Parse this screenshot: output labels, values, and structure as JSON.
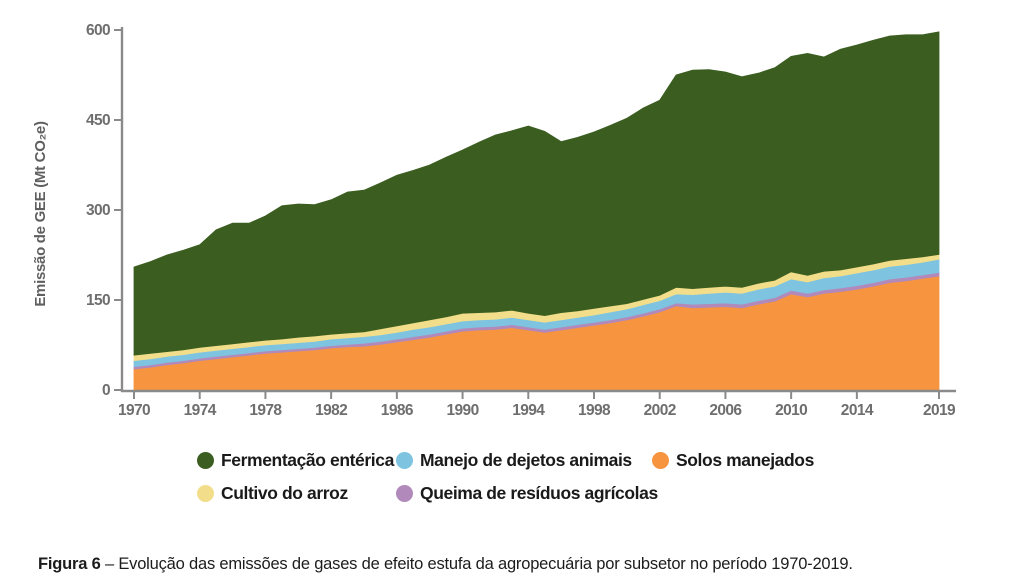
{
  "chart_data": {
    "type": "area",
    "stacked": true,
    "ylabel": "Emissão de GEE (Mt CO₂e)",
    "ylim": [
      0,
      600
    ],
    "y_ticks": [
      0,
      150,
      300,
      450,
      600
    ],
    "x_ticks": [
      1970,
      1974,
      1978,
      1982,
      1986,
      1990,
      1994,
      1998,
      2002,
      2006,
      2010,
      2014,
      2019
    ],
    "grid": false,
    "legend_position": "bottom",
    "x": [
      1970,
      1971,
      1972,
      1973,
      1974,
      1975,
      1976,
      1977,
      1978,
      1979,
      1980,
      1981,
      1982,
      1983,
      1984,
      1985,
      1986,
      1987,
      1988,
      1989,
      1990,
      1991,
      1992,
      1993,
      1994,
      1995,
      1996,
      1997,
      1998,
      1999,
      2000,
      2001,
      2002,
      2003,
      2004,
      2005,
      2006,
      2007,
      2008,
      2009,
      2010,
      2011,
      2012,
      2013,
      2014,
      2015,
      2016,
      2017,
      2018,
      2019
    ],
    "series": [
      {
        "name": "Solos manejados",
        "color": "#F7943F",
        "values": [
          35,
          38,
          42,
          45,
          49,
          52,
          55,
          58,
          61,
          63,
          65,
          67,
          70,
          72,
          73,
          76,
          80,
          84,
          88,
          93,
          98,
          100,
          101,
          104,
          100,
          96,
          100,
          104,
          108,
          112,
          117,
          123,
          130,
          140,
          137,
          138,
          139,
          137,
          143,
          148,
          160,
          155,
          161,
          164,
          168,
          173,
          179,
          182,
          186,
          190
        ]
      },
      {
        "name": "Queima de resíduos agrícolas",
        "color": "#B189BA",
        "values": [
          4,
          4,
          4,
          4,
          4,
          4,
          4,
          4,
          4,
          4,
          4,
          4,
          4,
          4,
          5,
          5,
          5,
          5,
          5,
          5,
          5,
          5,
          5,
          5,
          5,
          5,
          5,
          5,
          5,
          5,
          5,
          5,
          5,
          5,
          6,
          6,
          6,
          6,
          6,
          6,
          6,
          6,
          6,
          6,
          6,
          6,
          6,
          6,
          6,
          6
        ]
      },
      {
        "name": "Manejo de dejetos animais",
        "color": "#7EC4E0",
        "values": [
          10,
          10,
          10,
          10,
          10,
          10,
          10,
          10,
          10,
          10,
          10,
          10,
          11,
          11,
          11,
          11,
          11,
          12,
          12,
          12,
          12,
          12,
          12,
          12,
          12,
          12,
          12,
          12,
          12,
          13,
          13,
          14,
          14,
          15,
          16,
          17,
          18,
          18,
          19,
          19,
          19,
          19,
          20,
          20,
          21,
          21,
          21,
          21,
          21,
          22
        ]
      },
      {
        "name": "Cultivo do arroz",
        "color": "#F2DE8A",
        "values": [
          9,
          9,
          8,
          8,
          8,
          8,
          8,
          8,
          8,
          8,
          9,
          9,
          8,
          8,
          8,
          10,
          11,
          11,
          12,
          12,
          13,
          12,
          12,
          12,
          11,
          11,
          12,
          11,
          11,
          10,
          9,
          9,
          9,
          11,
          10,
          10,
          10,
          10,
          10,
          10,
          12,
          11,
          11,
          10,
          10,
          10,
          10,
          10,
          9,
          8
        ]
      },
      {
        "name": "Fermentação entérica",
        "color": "#3B5E20",
        "values": [
          147,
          153,
          161,
          166,
          171,
          193,
          201,
          198,
          207,
          222,
          222,
          219,
          224,
          235,
          236,
          243,
          251,
          254,
          258,
          266,
          272,
          284,
          295,
          299,
          312,
          307,
          285,
          289,
          294,
          301,
          309,
          319,
          325,
          354,
          364,
          363,
          357,
          351,
          350,
          354,
          359,
          370,
          357,
          368,
          370,
          373,
          374,
          373,
          370,
          371
        ]
      }
    ],
    "totals_hint": [
      205,
      214,
      225,
      233,
      242,
      267,
      278,
      278,
      290,
      307,
      310,
      309,
      317,
      330,
      333,
      345,
      358,
      366,
      375,
      388,
      400,
      413,
      425,
      432,
      440,
      431,
      414,
      421,
      430,
      441,
      453,
      470,
      483,
      525,
      533,
      534,
      530,
      522,
      528,
      537,
      556,
      561,
      555,
      568,
      575,
      583,
      590,
      592,
      592,
      597
    ]
  },
  "axis": {
    "ylabel": "Emissão de GEE (Mt CO₂e)",
    "tick_color": "#6E6E6E",
    "axis_color": "#8A8A8A"
  },
  "legend": {
    "items": [
      {
        "label": "Fermentação entérica",
        "color": "#3B5E20"
      },
      {
        "label": "Manejo de dejetos animais",
        "color": "#7EC4E0"
      },
      {
        "label": "Solos manejados",
        "color": "#F7943F"
      },
      {
        "label": "Cultivo do arroz",
        "color": "#F2DE8A"
      },
      {
        "label": "Queima de resíduos agrícolas",
        "color": "#B189BA"
      }
    ]
  },
  "caption": {
    "label": "Figura 6",
    "text": "– Evolução das emissões de gases de efeito estufa da agropecuária por subsetor no período 1970-2019."
  }
}
